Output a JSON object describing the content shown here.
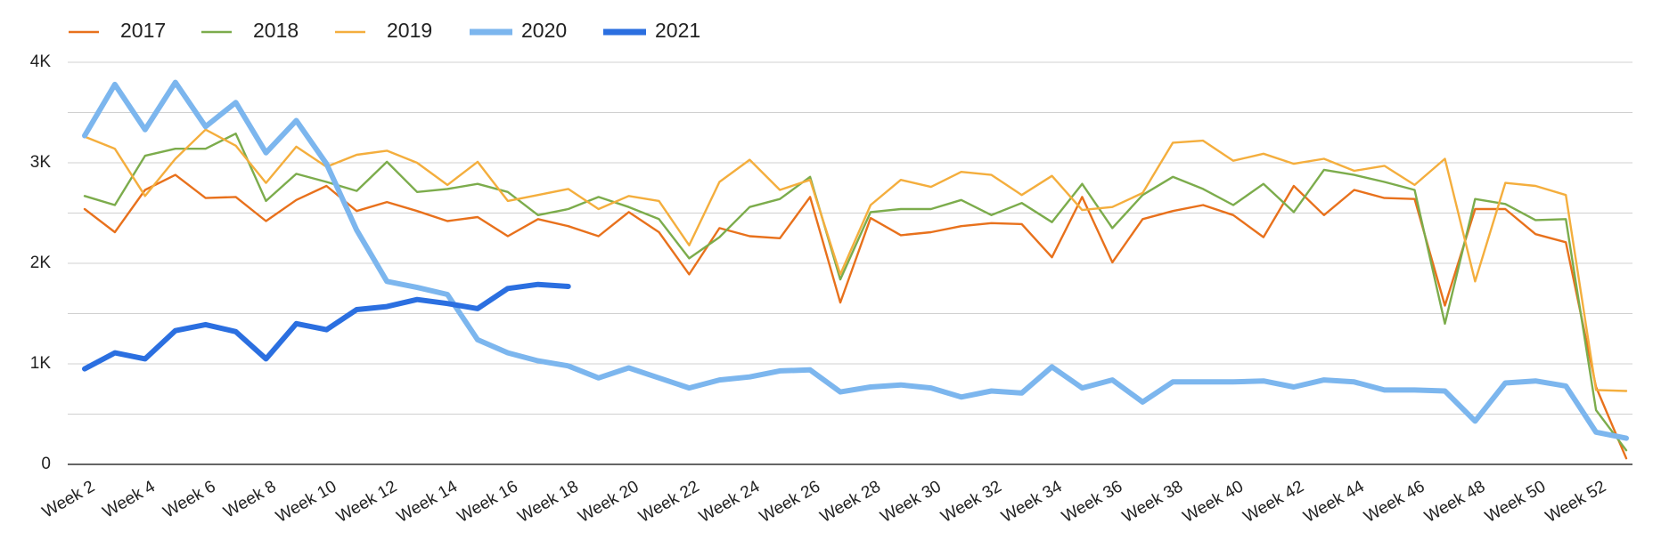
{
  "chart_data": {
    "type": "line",
    "categories": [
      "Week 2",
      null,
      "Week 4",
      null,
      "Week 6",
      null,
      "Week 8",
      null,
      "Week 10",
      null,
      "Week 12",
      null,
      "Week 14",
      null,
      "Week 16",
      null,
      "Week 18",
      null,
      "Week 20",
      null,
      "Week 22",
      null,
      "Week 24",
      null,
      "Week 26",
      null,
      "Week 28",
      null,
      "Week 30",
      null,
      "Week 32",
      null,
      "Week 34",
      null,
      "Week 36",
      null,
      "Week 38",
      null,
      "Week 40",
      null,
      "Week 42",
      null,
      "Week 44",
      null,
      "Week 46",
      null,
      "Week 48",
      null,
      "Week 50",
      null,
      "Week 52",
      null
    ],
    "ylim": [
      0,
      4000
    ],
    "yticks": [
      0,
      {
        "value": 1000,
        "label": "1K"
      },
      {
        "value": 2000,
        "label": "2K"
      },
      {
        "value": 3000,
        "label": "3K"
      },
      {
        "value": 4000,
        "label": "4K"
      }
    ],
    "minor_yticks": [
      500,
      1500,
      2500,
      3500
    ],
    "grid": true,
    "legend": "top",
    "series": [
      {
        "name": "2017",
        "color": "#e8711c",
        "values": [
          2540,
          2310,
          2730,
          2880,
          2650,
          2660,
          2420,
          2630,
          2770,
          2520,
          2610,
          2520,
          2420,
          2460,
          2270,
          2440,
          2370,
          2270,
          2510,
          2310,
          1890,
          2350,
          2270,
          2250,
          2660,
          1610,
          2450,
          2280,
          2310,
          2370,
          2400,
          2390,
          2060,
          2660,
          2010,
          2440,
          2520,
          2580,
          2480,
          2260,
          2770,
          2480,
          2730,
          2650,
          2640,
          1580,
          2540,
          2540,
          2290,
          2210,
          770,
          60
        ]
      },
      {
        "name": "2018",
        "color": "#7cac4c",
        "values": [
          2670,
          2580,
          3070,
          3140,
          3140,
          3290,
          2620,
          2890,
          2810,
          2720,
          3010,
          2710,
          2740,
          2790,
          2710,
          2480,
          2540,
          2660,
          2560,
          2440,
          2050,
          2260,
          2560,
          2640,
          2860,
          1840,
          2510,
          2540,
          2540,
          2630,
          2480,
          2600,
          2410,
          2790,
          2350,
          2680,
          2860,
          2740,
          2580,
          2790,
          2510,
          2930,
          2880,
          2810,
          2730,
          1400,
          2640,
          2590,
          2430,
          2440,
          540,
          140
        ]
      },
      {
        "name": "2019",
        "color": "#f4ae3d",
        "values": [
          3260,
          3140,
          2670,
          3040,
          3330,
          3170,
          2800,
          3160,
          2960,
          3080,
          3120,
          3000,
          2780,
          3010,
          2620,
          2680,
          2740,
          2540,
          2670,
          2620,
          2180,
          2810,
          3030,
          2730,
          2830,
          1890,
          2580,
          2830,
          2760,
          2910,
          2880,
          2680,
          2870,
          2530,
          2560,
          2700,
          3200,
          3220,
          3020,
          3090,
          2990,
          3040,
          2920,
          2970,
          2780,
          3040,
          1820,
          2800,
          2770,
          2680,
          740,
          730
        ]
      },
      {
        "name": "2020",
        "color": "#7cb6ee",
        "values": [
          3270,
          3780,
          3330,
          3800,
          3360,
          3600,
          3100,
          3420,
          2990,
          2330,
          1820,
          1760,
          1690,
          1240,
          1110,
          1030,
          980,
          860,
          960,
          860,
          760,
          840,
          870,
          930,
          940,
          720,
          770,
          790,
          760,
          670,
          730,
          710,
          970,
          760,
          840,
          620,
          820,
          820,
          820,
          830,
          770,
          840,
          820,
          740,
          740,
          730,
          430,
          810,
          830,
          780,
          320,
          260
        ]
      },
      {
        "name": "2021",
        "color": "#2b6fe0",
        "values": [
          950,
          1110,
          1050,
          1330,
          1390,
          1320,
          1050,
          1400,
          1340,
          1540,
          1570,
          1640,
          1600,
          1550,
          1750,
          1790,
          1770,
          null,
          null,
          null,
          null,
          null,
          null,
          null,
          null,
          null,
          null,
          null,
          null,
          null,
          null,
          null,
          null,
          null,
          null,
          null,
          null,
          null,
          null,
          null,
          null,
          null,
          null,
          null,
          null,
          null,
          null,
          null,
          null,
          null,
          null,
          null
        ]
      }
    ]
  }
}
